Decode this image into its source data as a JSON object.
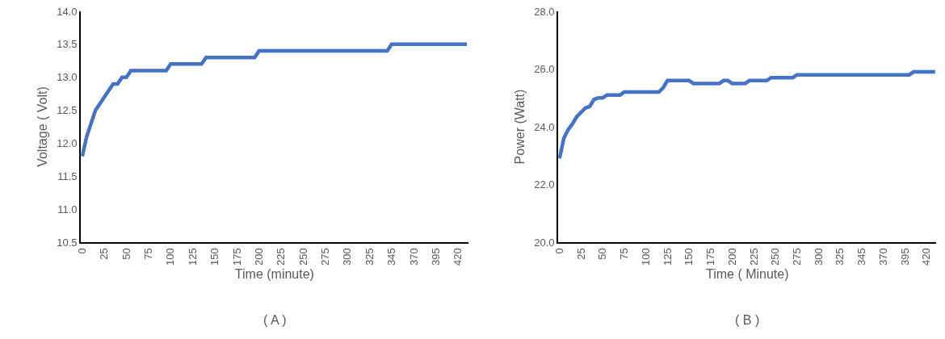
{
  "chart_data": [
    {
      "type": "line",
      "xlabel": "Time (minute)",
      "ylabel": "Voltage ( Volt)",
      "annotations": [
        "( A )"
      ],
      "marker": "none",
      "color": "#4472c4",
      "categories": [
        "0",
        null,
        null,
        null,
        null,
        "25",
        null,
        null,
        null,
        null,
        "50",
        null,
        null,
        null,
        null,
        "75",
        null,
        null,
        null,
        null,
        "100",
        null,
        null,
        null,
        null,
        "125",
        null,
        null,
        null,
        null,
        "150",
        null,
        null,
        null,
        null,
        "175",
        null,
        null,
        null,
        null,
        "200",
        null,
        null,
        null,
        null,
        "225",
        null,
        null,
        null,
        null,
        "250",
        null,
        null,
        null,
        null,
        "275",
        null,
        null,
        null,
        null,
        "300",
        null,
        null,
        null,
        null,
        "325",
        null,
        null,
        null,
        null,
        "345",
        null,
        null,
        null,
        null,
        "370",
        null,
        null,
        null,
        null,
        "395",
        null,
        null,
        null,
        null,
        "420",
        null,
        null
      ],
      "values": [
        11.8,
        12.1,
        12.3,
        12.5,
        12.6,
        12.7,
        12.8,
        12.9,
        12.9,
        13.0,
        13.0,
        13.1,
        13.1,
        13.1,
        13.1,
        13.1,
        13.1,
        13.1,
        13.1,
        13.1,
        13.2,
        13.2,
        13.2,
        13.2,
        13.2,
        13.2,
        13.2,
        13.2,
        13.3,
        13.3,
        13.3,
        13.3,
        13.3,
        13.3,
        13.3,
        13.3,
        13.3,
        13.3,
        13.3,
        13.3,
        13.4,
        13.4,
        13.4,
        13.4,
        13.4,
        13.4,
        13.4,
        13.4,
        13.4,
        13.4,
        13.4,
        13.4,
        13.4,
        13.4,
        13.4,
        13.4,
        13.4,
        13.4,
        13.4,
        13.4,
        13.4,
        13.4,
        13.4,
        13.4,
        13.4,
        13.4,
        13.4,
        13.4,
        13.4,
        13.4,
        13.5,
        13.5,
        13.5,
        13.5,
        13.5,
        13.5,
        13.5,
        13.5,
        13.5,
        13.5,
        13.5,
        13.5,
        13.5,
        13.5,
        13.5,
        13.5,
        13.5,
        13.5
      ],
      "ylim": [
        10.5,
        14.0
      ],
      "yticks": [
        {
          "value": 10.5,
          "label": "10.5"
        },
        {
          "value": 11,
          "label": "11.0"
        },
        {
          "value": 11.5,
          "label": "11.5"
        },
        {
          "value": 12,
          "label": "12.0"
        },
        {
          "value": 12.5,
          "label": "12.5"
        },
        {
          "value": 13,
          "label": "13.0"
        },
        {
          "value": 13.5,
          "label": "13.5"
        },
        {
          "value": 14,
          "label": "14.0"
        }
      ]
    },
    {
      "type": "line",
      "xlabel": "Time ( Minute)",
      "ylabel": "Power (Watt)",
      "annotations": [
        "( B )"
      ],
      "marker": "none",
      "color": "#4472c4",
      "categories": [
        "0",
        null,
        null,
        null,
        null,
        "25",
        null,
        null,
        null,
        null,
        "50",
        null,
        null,
        null,
        null,
        "75",
        null,
        null,
        null,
        null,
        "100",
        null,
        null,
        null,
        null,
        "125",
        null,
        null,
        null,
        null,
        "150",
        null,
        null,
        null,
        null,
        "175",
        null,
        null,
        null,
        null,
        "200",
        null,
        null,
        null,
        null,
        "225",
        null,
        null,
        null,
        null,
        "250",
        null,
        null,
        null,
        null,
        "275",
        null,
        null,
        null,
        null,
        "300",
        null,
        null,
        null,
        null,
        "325",
        null,
        null,
        null,
        null,
        "345",
        null,
        null,
        null,
        null,
        "370",
        null,
        null,
        null,
        null,
        "395",
        null,
        null,
        null,
        null,
        "420",
        null,
        null
      ],
      "values": [
        22.9,
        23.6,
        23.9,
        24.1,
        24.35,
        24.5,
        24.65,
        24.7,
        24.95,
        25.0,
        25.0,
        25.1,
        25.1,
        25.1,
        25.1,
        25.2,
        25.2,
        25.2,
        25.2,
        25.2,
        25.2,
        25.2,
        25.2,
        25.2,
        25.35,
        25.6,
        25.6,
        25.6,
        25.6,
        25.6,
        25.6,
        25.5,
        25.5,
        25.5,
        25.5,
        25.5,
        25.5,
        25.5,
        25.6,
        25.6,
        25.5,
        25.5,
        25.5,
        25.5,
        25.6,
        25.6,
        25.6,
        25.6,
        25.6,
        25.7,
        25.7,
        25.7,
        25.7,
        25.7,
        25.7,
        25.8,
        25.8,
        25.8,
        25.8,
        25.8,
        25.8,
        25.8,
        25.8,
        25.8,
        25.8,
        25.8,
        25.8,
        25.8,
        25.8,
        25.8,
        25.8,
        25.8,
        25.8,
        25.8,
        25.8,
        25.8,
        25.8,
        25.8,
        25.8,
        25.8,
        25.8,
        25.8,
        25.9,
        25.9,
        25.9,
        25.9,
        25.9,
        25.9
      ],
      "ylim": [
        20.0,
        28.0
      ],
      "yticks": [
        {
          "value": 20,
          "label": "20.0"
        },
        {
          "value": 22,
          "label": "22.0"
        },
        {
          "value": 24,
          "label": "24.0"
        },
        {
          "value": 26,
          "label": "26.0"
        },
        {
          "value": 28,
          "label": "28.0"
        }
      ]
    }
  ]
}
